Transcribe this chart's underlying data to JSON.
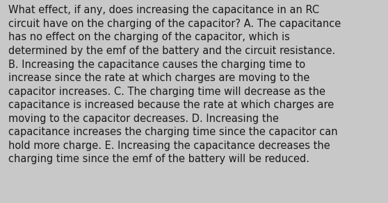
{
  "background_color": "#c8c8c8",
  "text_color": "#1a1a1a",
  "font_size": 10.5,
  "font_family": "DejaVu Sans",
  "lines": [
    "What effect, if any, does increasing the capacitance in an RC",
    "circuit have on the charging of the capacitor? A. The capacitance",
    "has no effect on the charging of the capacitor, which is",
    "determined by the emf of the battery and the circuit resistance.",
    "B. Increasing the capacitance causes the charging time to",
    "increase since the rate at which charges are moving to the",
    "capacitor increases. C. The charging time will decrease as the",
    "capacitance is increased because the rate at which charges are",
    "moving to the capacitor decreases. D. Increasing the",
    "capacitance increases the charging time since the capacitor can",
    "hold more charge. E. Increasing the capacitance decreases the",
    "charging time since the emf of the battery will be reduced."
  ],
  "figsize": [
    5.58,
    2.93
  ],
  "dpi": 100
}
